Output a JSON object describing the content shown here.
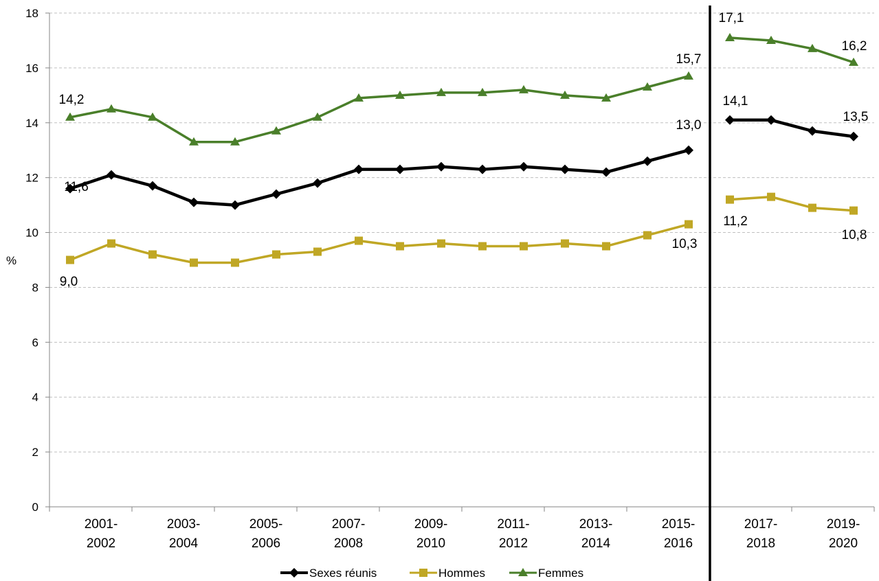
{
  "chart_data": {
    "type": "line",
    "title": "",
    "xlabel": "",
    "ylabel": "%",
    "ylim": [
      0,
      18
    ],
    "yticks": [
      "0",
      "2",
      "4",
      "6",
      "8",
      "10",
      "12",
      "14",
      "16",
      "18"
    ],
    "grid": true,
    "legend_position": "bottom",
    "x_labels": [
      {
        "line1": "2001-",
        "line2": "2002"
      },
      {
        "line1": "2003-",
        "line2": "2004"
      },
      {
        "line1": "2005-",
        "line2": "2006"
      },
      {
        "line1": "2007-",
        "line2": "2008"
      },
      {
        "line1": "2009-",
        "line2": "2010"
      },
      {
        "line1": "2011-",
        "line2": "2012"
      },
      {
        "line1": "2013-",
        "line2": "2014"
      },
      {
        "line1": "2015-",
        "line2": "2016"
      },
      {
        "line1": "2017-",
        "line2": "2018"
      },
      {
        "line1": "2019-",
        "line2": "2020"
      }
    ],
    "series": [
      {
        "name": "Sexes réunis",
        "color": "#000000",
        "marker": "diamond",
        "segments": [
          [
            11.6,
            12.1,
            11.7,
            11.1,
            11.0,
            11.4,
            11.8,
            12.3,
            12.3,
            12.4,
            12.3,
            12.4,
            12.3,
            12.2,
            12.6,
            13.0
          ],
          [
            14.1,
            14.1,
            13.7,
            13.5
          ]
        ],
        "labels": [
          {
            "text": "11,6"
          },
          {
            "text": "13,0"
          },
          {
            "text": "14,1"
          },
          {
            "text": "13,5"
          }
        ]
      },
      {
        "name": "Hommes",
        "color": "#c0a725",
        "marker": "square",
        "segments": [
          [
            9.0,
            9.6,
            9.2,
            8.9,
            8.9,
            9.2,
            9.3,
            9.7,
            9.5,
            9.6,
            9.5,
            9.5,
            9.6,
            9.5,
            9.9,
            10.3
          ],
          [
            11.2,
            11.3,
            10.9,
            10.8
          ]
        ],
        "labels": [
          {
            "text": "9,0"
          },
          {
            "text": "10,3"
          },
          {
            "text": "11,2"
          },
          {
            "text": "10,8"
          }
        ]
      },
      {
        "name": "Femmes",
        "color": "#4a7f2a",
        "marker": "triangle",
        "segments": [
          [
            14.2,
            14.5,
            14.2,
            13.3,
            13.3,
            13.7,
            14.2,
            14.9,
            15.0,
            15.1,
            15.1,
            15.2,
            15.0,
            14.9,
            15.3,
            15.7
          ],
          [
            17.1,
            17.0,
            16.7,
            16.2
          ]
        ],
        "labels": [
          {
            "text": "14,2"
          },
          {
            "text": "15,7"
          },
          {
            "text": "17,1"
          },
          {
            "text": "16,2"
          }
        ]
      }
    ]
  }
}
